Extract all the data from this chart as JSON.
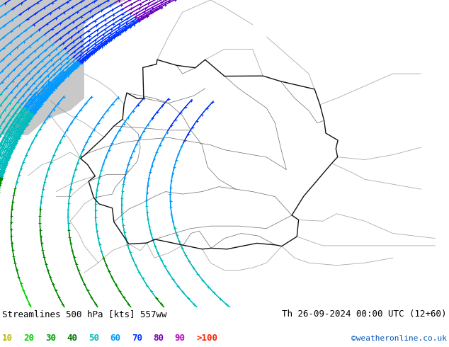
{
  "title_left": "Streamlines 500 hPa [kts] 557ww",
  "title_right": "Th 26-09-2024 00:00 UTC (12+60)",
  "credit": "©weatheronline.co.uk",
  "legend_values": [
    "10",
    "20",
    "30",
    "40",
    "50",
    "60",
    "70",
    "80",
    "90"
  ],
  "legend_label_gt100": ">100",
  "legend_colors": [
    "#bbbb00",
    "#00cc00",
    "#009900",
    "#007700",
    "#00bbbb",
    "#0099ff",
    "#0033ff",
    "#7700bb",
    "#bb00bb"
  ],
  "legend_gt100_color": "#ff2200",
  "bg_green": "#b8dda0",
  "bg_gray": "#c8c8c8",
  "figsize": [
    6.34,
    4.9
  ],
  "dpi": 100,
  "lon_min": 3.0,
  "lon_max": 19.0,
  "lat_min": 45.0,
  "lat_max": 57.5
}
